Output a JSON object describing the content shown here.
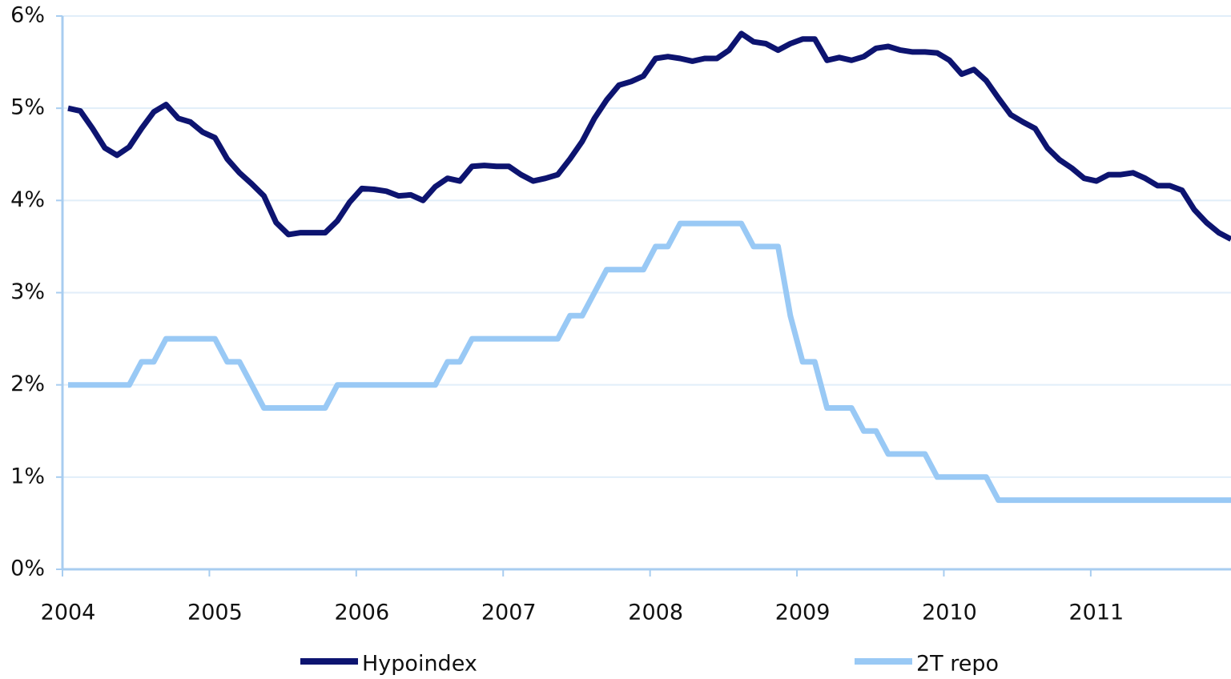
{
  "chart_data": {
    "type": "line",
    "categories": [
      "2004",
      null,
      null,
      null,
      null,
      null,
      null,
      null,
      null,
      null,
      null,
      null,
      "2005",
      null,
      null,
      null,
      null,
      null,
      null,
      null,
      null,
      null,
      null,
      null,
      "2006",
      null,
      null,
      null,
      null,
      null,
      null,
      null,
      null,
      null,
      null,
      null,
      "2007",
      null,
      null,
      null,
      null,
      null,
      null,
      null,
      null,
      null,
      null,
      null,
      "2008",
      null,
      null,
      null,
      null,
      null,
      null,
      null,
      null,
      null,
      null,
      null,
      "2009",
      null,
      null,
      null,
      null,
      null,
      null,
      null,
      null,
      null,
      null,
      null,
      "2010",
      null,
      null,
      null,
      null,
      null,
      null,
      null,
      null,
      null,
      null,
      null,
      "2011",
      null,
      null,
      null,
      null,
      null,
      null,
      null,
      null,
      null,
      null,
      null
    ],
    "series": [
      {
        "name": "Hypoindex",
        "color": "#0d1470",
        "values": [
          5.0,
          4.97,
          4.78,
          4.57,
          4.49,
          4.58,
          4.78,
          4.96,
          5.04,
          4.89,
          4.85,
          4.74,
          4.68,
          4.45,
          4.3,
          4.18,
          4.05,
          3.76,
          3.63,
          3.65,
          3.65,
          3.65,
          3.78,
          3.98,
          4.13,
          4.12,
          4.1,
          4.05,
          4.06,
          4.0,
          4.15,
          4.24,
          4.21,
          4.37,
          4.38,
          4.37,
          4.37,
          4.28,
          4.21,
          4.24,
          4.28,
          4.45,
          4.64,
          4.89,
          5.09,
          5.25,
          5.29,
          5.35,
          5.54,
          5.56,
          5.54,
          5.51,
          5.54,
          5.54,
          5.63,
          5.81,
          5.72,
          5.7,
          5.63,
          5.7,
          5.75,
          5.75,
          5.52,
          5.55,
          5.52,
          5.56,
          5.65,
          5.67,
          5.63,
          5.61,
          5.61,
          5.6,
          5.52,
          5.37,
          5.42,
          5.3,
          5.11,
          4.93,
          4.85,
          4.78,
          4.57,
          4.44,
          4.35,
          4.24,
          4.21,
          4.28,
          4.28,
          4.3,
          4.24,
          4.16,
          4.16,
          4.11,
          3.9,
          3.76,
          3.65,
          3.58
        ]
      },
      {
        "name": "2T repo",
        "color": "#99c9f5",
        "values": [
          2.0,
          2.0,
          2.0,
          2.0,
          2.0,
          2.0,
          2.25,
          2.25,
          2.5,
          2.5,
          2.5,
          2.5,
          2.5,
          2.25,
          2.25,
          2.0,
          1.75,
          1.75,
          1.75,
          1.75,
          1.75,
          1.75,
          2.0,
          2.0,
          2.0,
          2.0,
          2.0,
          2.0,
          2.0,
          2.0,
          2.0,
          2.25,
          2.25,
          2.5,
          2.5,
          2.5,
          2.5,
          2.5,
          2.5,
          2.5,
          2.5,
          2.75,
          2.75,
          3.0,
          3.25,
          3.25,
          3.25,
          3.25,
          3.5,
          3.5,
          3.75,
          3.75,
          3.75,
          3.75,
          3.75,
          3.75,
          3.5,
          3.5,
          3.5,
          2.75,
          2.25,
          2.25,
          1.75,
          1.75,
          1.75,
          1.5,
          1.5,
          1.25,
          1.25,
          1.25,
          1.25,
          1.0,
          1.0,
          1.0,
          1.0,
          1.0,
          0.75,
          0.75,
          0.75,
          0.75,
          0.75,
          0.75,
          0.75,
          0.75,
          0.75,
          0.75,
          0.75,
          0.75,
          0.75,
          0.75,
          0.75,
          0.75,
          0.75,
          0.75,
          0.75,
          0.75
        ]
      }
    ],
    "ylim": [
      0,
      6
    ],
    "yticks": [
      {
        "value": 0,
        "label": "0%"
      },
      {
        "value": 1,
        "label": "1%"
      },
      {
        "value": 2,
        "label": "2%"
      },
      {
        "value": 3,
        "label": "3%"
      },
      {
        "value": 4,
        "label": "4%"
      },
      {
        "value": 5,
        "label": "5%"
      },
      {
        "value": 6,
        "label": "6%"
      }
    ],
    "grid": true
  }
}
